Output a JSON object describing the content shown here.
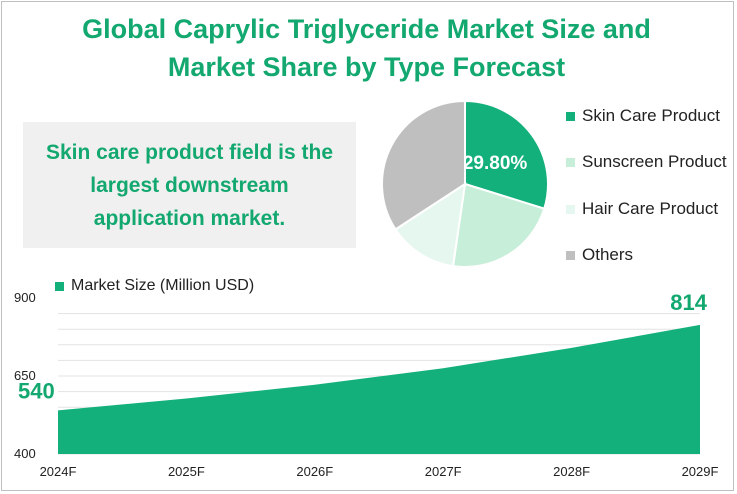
{
  "title_line1": "Global Caprylic Triglyceride Market Size and",
  "title_line2": "Market Share by Type Forecast",
  "callout_text": "Skin care product field is the largest downstream application market.",
  "chart_data": [
    {
      "type": "pie",
      "categories": [
        "Skin Care Product",
        "Sunscreen Product",
        "Hair Care Product",
        "Others"
      ],
      "values": [
        29.8,
        22.5,
        13.5,
        34.2
      ],
      "colors": [
        "#13b07c",
        "#c7eed8",
        "#e6f7ef",
        "#bfbfbf"
      ],
      "data_labels": [
        "29.80%",
        "",
        "",
        ""
      ],
      "legend": "right"
    },
    {
      "type": "area",
      "series": [
        {
          "name": "Market Size (Million USD)",
          "values": [
            540,
            578,
            622,
            675,
            740,
            814
          ],
          "color": "#13b07c"
        }
      ],
      "x": [
        "2024F",
        "2025F",
        "2026F",
        "2027F",
        "2028F",
        "2029F"
      ],
      "y_ticks": [
        "400",
        "650",
        "900"
      ],
      "ylim": [
        400,
        900
      ],
      "data_labels": {
        "first": "540",
        "last": "814"
      },
      "legend": "top-left",
      "grid": true
    }
  ]
}
